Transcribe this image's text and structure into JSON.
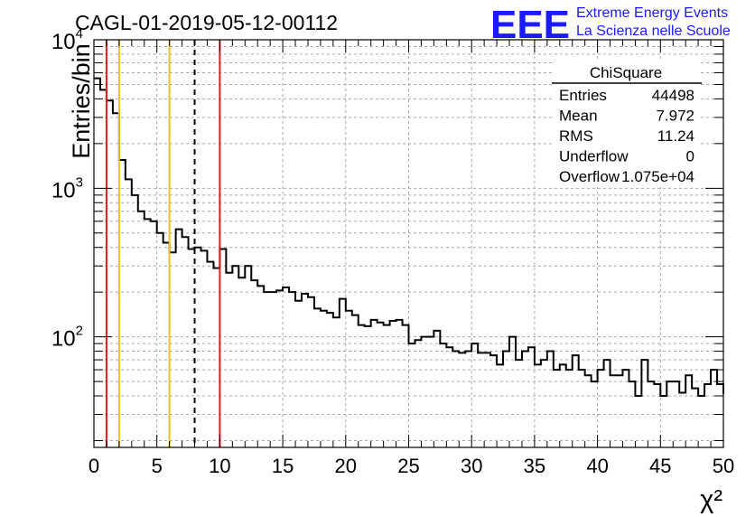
{
  "header": {
    "run_title": "CAGL-01-2019-05-12-00112"
  },
  "logo": {
    "mark": "EEE",
    "line1": "Extreme Energy Events",
    "line2": "La Scienza nelle Scuole"
  },
  "stats_box": {
    "title": "ChiSquare",
    "rows": [
      {
        "label": "Entries",
        "value": "44498"
      },
      {
        "label": "Mean",
        "value": "7.972"
      },
      {
        "label": "RMS",
        "value": "11.24"
      },
      {
        "label": "Underflow",
        "value": "0"
      },
      {
        "label": "Overflow",
        "value": "1.075e+04"
      }
    ]
  },
  "chart_data": {
    "type": "histogram",
    "xlabel": "χ²",
    "ylabel": "Entries/bin",
    "xlim": [
      0,
      50
    ],
    "ylim": [
      18,
      10000
    ],
    "y_scale": "log",
    "grid": true,
    "x_ticks": [
      "0",
      "5",
      "10",
      "15",
      "20",
      "25",
      "30",
      "35",
      "40",
      "45",
      "50"
    ],
    "y_ticks": [
      {
        "base": "10",
        "exp": "2",
        "value": 100
      },
      {
        "base": "10",
        "exp": "3",
        "value": 1000
      },
      {
        "base": "10",
        "exp": "4",
        "value": 10000
      }
    ],
    "bin_width": 0.5,
    "counts": [
      5500,
      4600,
      3900,
      3200,
      1550,
      1150,
      900,
      700,
      620,
      600,
      500,
      430,
      370,
      530,
      470,
      390,
      400,
      380,
      320,
      290,
      390,
      270,
      300,
      250,
      300,
      240,
      220,
      200,
      200,
      205,
      215,
      200,
      175,
      195,
      185,
      155,
      150,
      145,
      135,
      180,
      150,
      140,
      120,
      118,
      130,
      125,
      120,
      128,
      130,
      120,
      90,
      95,
      100,
      100,
      110,
      90,
      85,
      80,
      78,
      80,
      90,
      78,
      78,
      75,
      65,
      80,
      100,
      70,
      80,
      85,
      65,
      70,
      80,
      60,
      65,
      60,
      75,
      60,
      55,
      50,
      60,
      70,
      55,
      55,
      60,
      50,
      40,
      70,
      50,
      48,
      40,
      50,
      50,
      42,
      55,
      45,
      40,
      48,
      60,
      48
    ],
    "vertical_lines": [
      {
        "x": 1,
        "color": "#e02020",
        "style": "solid"
      },
      {
        "x": 2,
        "color": "#f0c020",
        "style": "solid"
      },
      {
        "x": 6,
        "color": "#f0c020",
        "style": "solid"
      },
      {
        "x": 8,
        "color": "#000000",
        "style": "dashed"
      },
      {
        "x": 10,
        "color": "#e02020",
        "style": "solid"
      }
    ]
  }
}
